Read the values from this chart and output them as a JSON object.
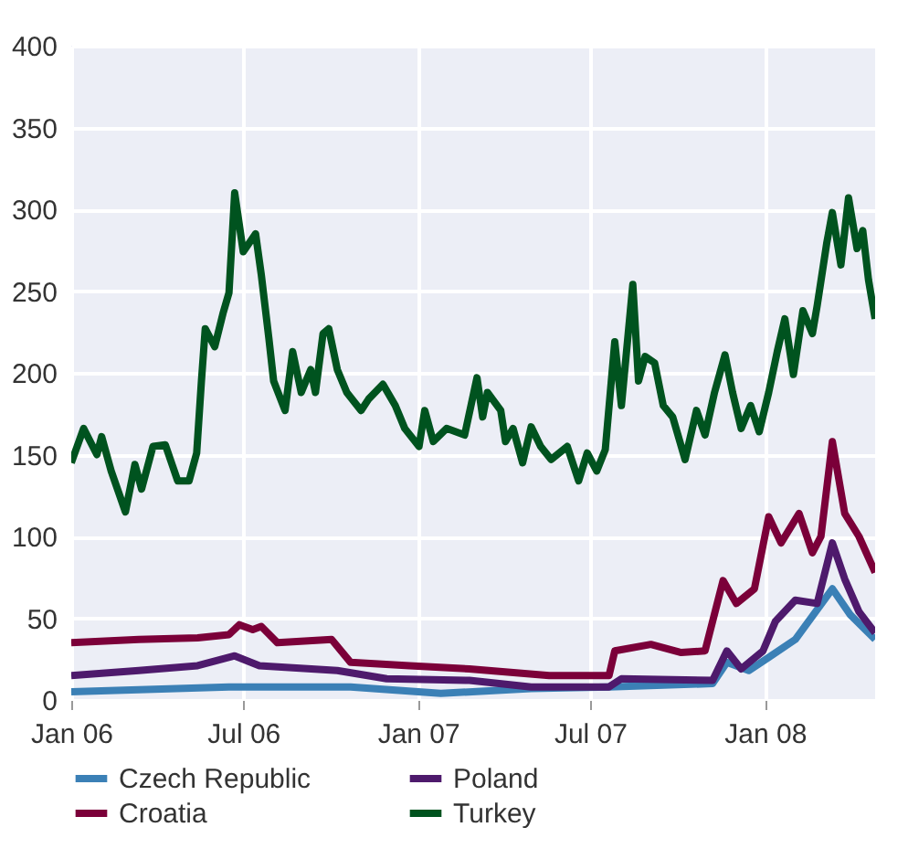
{
  "chart_data": {
    "type": "line",
    "xlim": [
      "2006-01-01",
      "2008-04-26"
    ],
    "xticks": [
      {
        "value": "2006-01-01",
        "label": "Jan 06"
      },
      {
        "value": "2006-07-01",
        "label": "Jul 06"
      },
      {
        "value": "2007-01-01",
        "label": "Jan 07"
      },
      {
        "value": "2007-07-01",
        "label": "Jul 07"
      },
      {
        "value": "2008-01-01",
        "label": "Jan 08"
      }
    ],
    "ylim": [
      0,
      400
    ],
    "yticks": [
      0,
      50,
      100,
      150,
      200,
      250,
      300,
      350,
      400
    ],
    "grid": true,
    "legend": "bottom",
    "marker": "none",
    "line_style": "solid",
    "series": [
      {
        "name": "Czech Republic",
        "color": "#3b80b6",
        "x": [
          "2006-01-01",
          "2006-06-16",
          "2006-10-22",
          "2007-01-25",
          "2007-04-30",
          "2007-07-21",
          "2007-11-07",
          "2007-11-22",
          "2007-12-15",
          "2008-01-05",
          "2008-02-02",
          "2008-03-12",
          "2008-03-31",
          "2008-04-26"
        ],
        "values": [
          5,
          8,
          8,
          4,
          7,
          8,
          10,
          23,
          18,
          26,
          37,
          68,
          52,
          37
        ]
      },
      {
        "name": "Poland",
        "color": "#4e1a6c",
        "x": [
          "2006-01-01",
          "2006-03-13",
          "2006-05-14",
          "2006-06-22",
          "2006-07-18",
          "2006-10-08",
          "2006-11-29",
          "2007-02-24",
          "2007-04-30",
          "2007-07-21",
          "2007-08-03",
          "2007-11-07",
          "2007-11-22",
          "2007-12-07",
          "2007-12-30",
          "2008-01-12",
          "2008-02-02",
          "2008-02-25",
          "2008-03-12",
          "2008-03-25",
          "2008-04-09",
          "2008-04-26"
        ],
        "values": [
          15,
          18,
          21,
          27,
          21,
          18,
          13,
          12,
          8,
          8,
          13,
          12,
          30,
          19,
          30,
          48,
          61,
          59,
          96,
          74,
          54,
          41
        ]
      },
      {
        "name": "Croatia",
        "color": "#7b0039",
        "x": [
          "2006-01-01",
          "2006-03-13",
          "2006-05-14",
          "2006-06-16",
          "2006-06-27",
          "2006-07-11",
          "2006-07-20",
          "2006-08-06",
          "2006-10-02",
          "2006-10-22",
          "2006-12-23",
          "2007-02-24",
          "2007-05-19",
          "2007-07-21",
          "2007-07-27",
          "2007-09-03",
          "2007-10-05",
          "2007-10-30",
          "2007-11-18",
          "2007-12-02",
          "2007-12-21",
          "2008-01-05",
          "2008-01-18",
          "2008-02-06",
          "2008-02-20",
          "2008-02-29",
          "2008-03-12",
          "2008-03-25",
          "2008-04-09",
          "2008-04-26"
        ],
        "values": [
          35,
          37,
          38,
          40,
          46,
          43,
          45,
          35,
          37,
          23,
          21,
          19,
          15,
          15,
          30,
          34,
          29,
          30,
          73,
          59,
          68,
          112,
          96,
          114,
          90,
          100,
          158,
          114,
          100,
          78
        ]
      },
      {
        "name": "Turkey",
        "color": "#00531f",
        "x": [
          "2006-01-01",
          "2006-01-14",
          "2006-01-28",
          "2006-02-02",
          "2006-02-12",
          "2006-02-27",
          "2006-03-09",
          "2006-03-16",
          "2006-03-28",
          "2006-04-10",
          "2006-04-23",
          "2006-05-05",
          "2006-05-13",
          "2006-05-18",
          "2006-05-22",
          "2006-06-01",
          "2006-06-10",
          "2006-06-16",
          "2006-06-22",
          "2006-07-01",
          "2006-07-14",
          "2006-07-20",
          "2006-07-28",
          "2006-08-02",
          "2006-08-14",
          "2006-08-22",
          "2006-08-31",
          "2006-09-10",
          "2006-09-15",
          "2006-09-23",
          "2006-09-29",
          "2006-10-08",
          "2006-10-18",
          "2006-11-02",
          "2006-11-10",
          "2006-11-25",
          "2006-12-08",
          "2006-12-18",
          "2007-01-02",
          "2007-01-08",
          "2007-01-17",
          "2007-01-31",
          "2007-02-19",
          "2007-03-04",
          "2007-03-10",
          "2007-03-15",
          "2007-03-29",
          "2007-04-03",
          "2007-04-11",
          "2007-04-21",
          "2007-04-30",
          "2007-05-10",
          "2007-05-21",
          "2007-06-07",
          "2007-06-19",
          "2007-06-28",
          "2007-07-08",
          "2007-07-17",
          "2007-07-27",
          "2007-08-03",
          "2007-08-15",
          "2007-08-21",
          "2007-08-28",
          "2007-09-07",
          "2007-09-16",
          "2007-09-26",
          "2007-10-09",
          "2007-10-21",
          "2007-10-30",
          "2007-11-09",
          "2007-11-20",
          "2007-11-28",
          "2007-12-07",
          "2007-12-17",
          "2007-12-26",
          "2008-01-05",
          "2008-01-14",
          "2008-01-22",
          "2008-01-31",
          "2008-02-10",
          "2008-02-20",
          "2008-02-25",
          "2008-03-06",
          "2008-03-12",
          "2008-03-21",
          "2008-03-29",
          "2008-04-07",
          "2008-04-13",
          "2008-04-19",
          "2008-04-26"
        ],
        "values": [
          145,
          166,
          150,
          161,
          140,
          115,
          144,
          129,
          155,
          156,
          134,
          134,
          151,
          195,
          227,
          216,
          237,
          249,
          310,
          274,
          285,
          260,
          221,
          195,
          177,
          213,
          188,
          202,
          188,
          224,
          227,
          202,
          188,
          177,
          184,
          193,
          180,
          166,
          155,
          177,
          158,
          166,
          162,
          197,
          173,
          188,
          177,
          158,
          166,
          145,
          167,
          155,
          147,
          155,
          134,
          151,
          140,
          153,
          219,
          180,
          254,
          195,
          210,
          206,
          180,
          173,
          147,
          177,
          162,
          188,
          211,
          188,
          166,
          180,
          164,
          188,
          213,
          233,
          199,
          238,
          224,
          241,
          279,
          298,
          266,
          307,
          276,
          287,
          257,
          233
        ]
      }
    ]
  }
}
